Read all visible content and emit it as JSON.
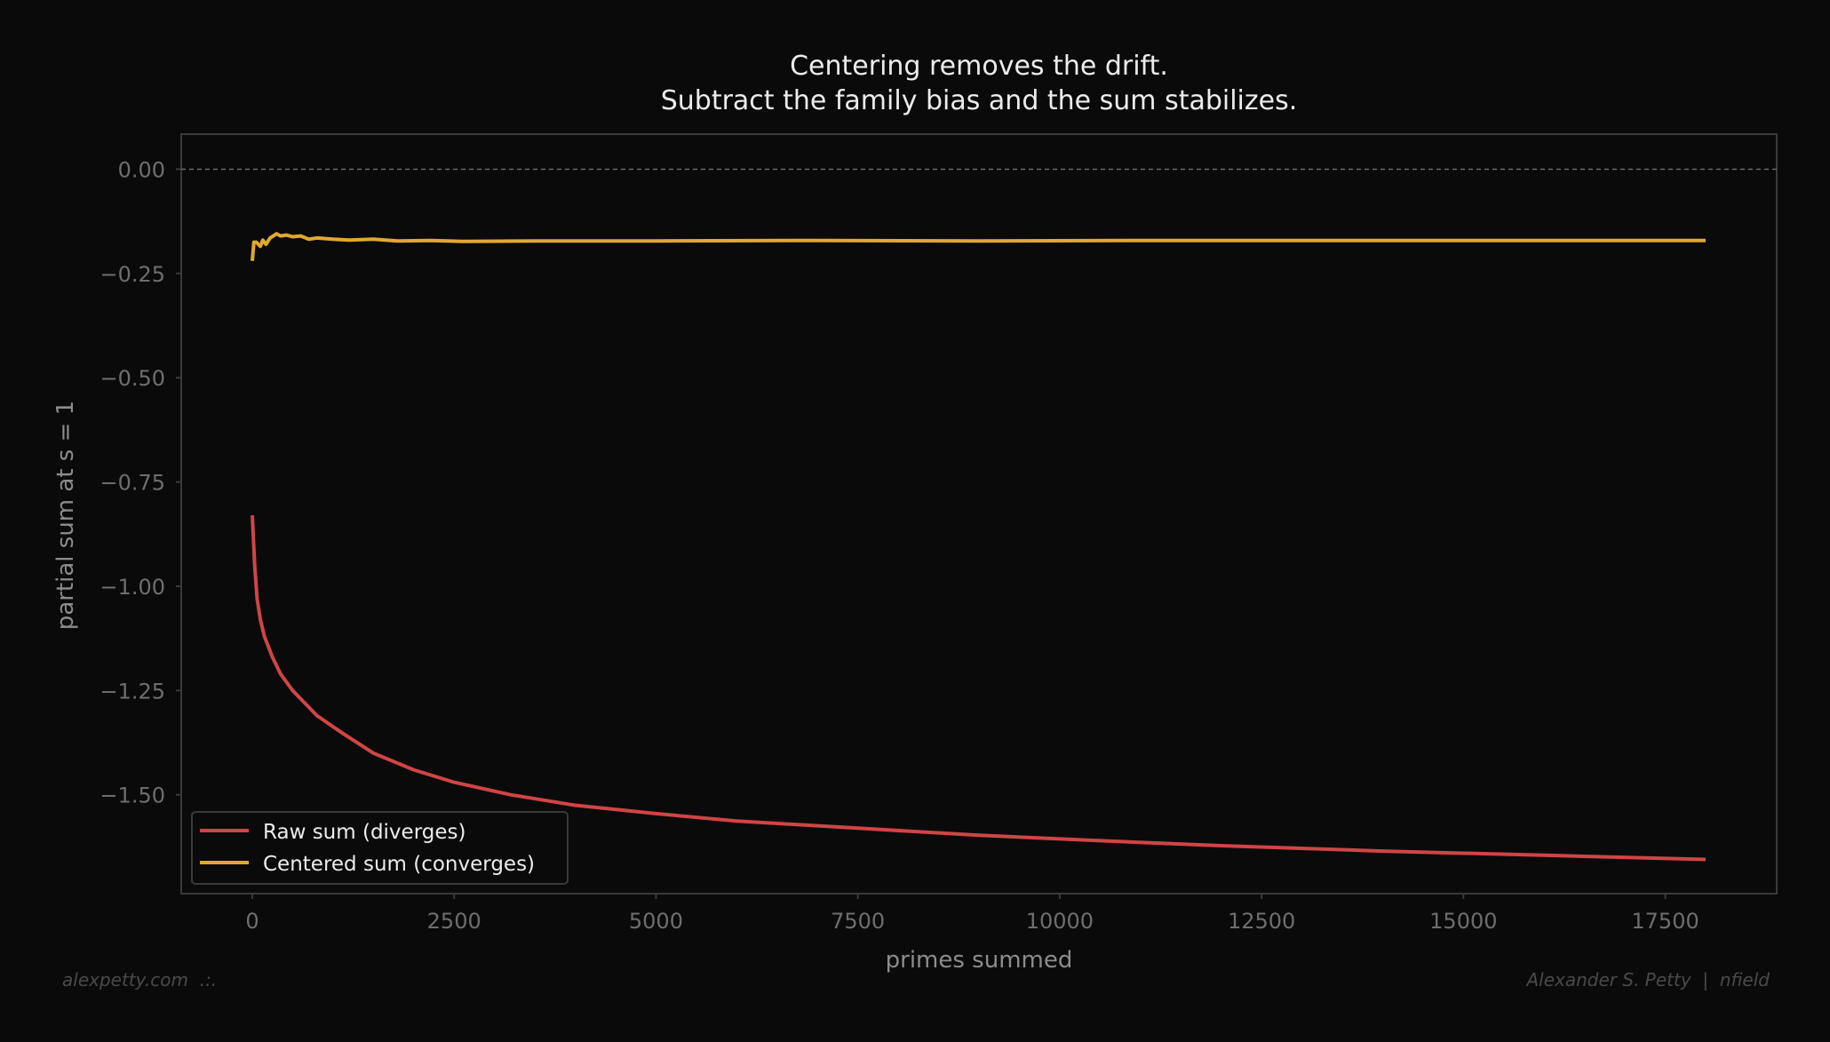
{
  "chart_data": {
    "type": "line",
    "title": "Centering removes the drift.",
    "subtitle": "Subtract the family bias and the sum stabilizes.",
    "xlabel": "primes summed",
    "ylabel": "partial sum at s = 1",
    "xlim": [
      -880,
      18880
    ],
    "ylim": [
      -1.737,
      0.084
    ],
    "xticks": [
      0,
      2500,
      5000,
      7500,
      10000,
      12500,
      15000,
      17500
    ],
    "xtick_labels": [
      "0",
      "2500",
      "5000",
      "7500",
      "10000",
      "12500",
      "15000",
      "17500"
    ],
    "yticks": [
      0,
      -0.25,
      -0.5,
      -0.75,
      -1.0,
      -1.25,
      -1.5
    ],
    "ytick_labels": [
      "0.00",
      "−0.25",
      "−0.50",
      "−0.75",
      "−1.00",
      "−1.25",
      "−1.50"
    ],
    "grid": false,
    "reference_line": {
      "y": 0,
      "style": "dashed"
    },
    "legend_position": "bottom-left",
    "series": [
      {
        "name": "Raw sum (diverges)",
        "color": "#d04545",
        "x": [
          0,
          30,
          60,
          100,
          150,
          250,
          350,
          500,
          650,
          800,
          1100,
          1500,
          2000,
          2500,
          3200,
          4000,
          5000,
          6000,
          7500,
          9000,
          10500,
          12000,
          14000,
          16000,
          18000
        ],
        "y": [
          -0.83,
          -0.95,
          -1.03,
          -1.08,
          -1.12,
          -1.17,
          -1.21,
          -1.25,
          -1.28,
          -1.31,
          -1.35,
          -1.4,
          -1.44,
          -1.47,
          -1.5,
          -1.525,
          -1.545,
          -1.563,
          -1.58,
          -1.597,
          -1.61,
          -1.622,
          -1.635,
          -1.645,
          -1.655
        ]
      },
      {
        "name": "Centered sum (converges)",
        "color": "#e0a830",
        "x": [
          0,
          20,
          50,
          100,
          130,
          170,
          220,
          300,
          350,
          420,
          500,
          600,
          700,
          800,
          1000,
          1200,
          1500,
          1800,
          2200,
          2600,
          3500,
          5000,
          7000,
          9000,
          11000,
          13000,
          15000,
          18000
        ],
        "y": [
          -0.22,
          -0.175,
          -0.175,
          -0.185,
          -0.17,
          -0.18,
          -0.165,
          -0.155,
          -0.16,
          -0.158,
          -0.162,
          -0.16,
          -0.168,
          -0.165,
          -0.168,
          -0.17,
          -0.168,
          -0.172,
          -0.171,
          -0.173,
          -0.172,
          -0.172,
          -0.171,
          -0.172,
          -0.171,
          -0.171,
          -0.171,
          -0.171
        ]
      }
    ]
  },
  "footer": {
    "left": "alexpetty.com  .:.",
    "right": "Alexander S. Petty  |  nfield"
  }
}
